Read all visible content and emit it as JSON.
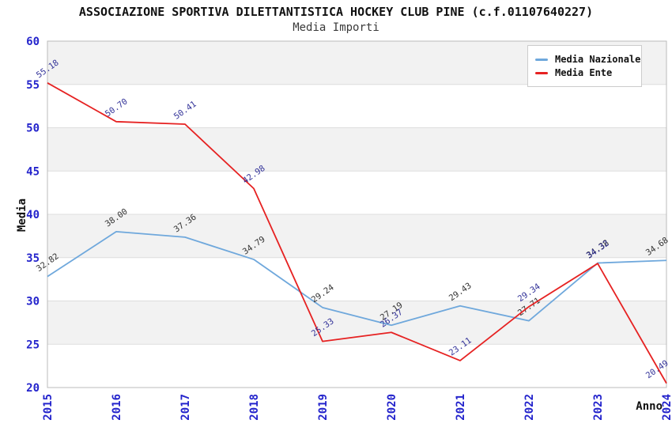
{
  "title": "ASSOCIAZIONE SPORTIVA DILETTANTISTICA HOCKEY CLUB PINE (c.f.01107640227)",
  "subtitle": "Media Importi",
  "chart_data": {
    "type": "line",
    "categories": [
      "2015",
      "2016",
      "2017",
      "2018",
      "2019",
      "2020",
      "2021",
      "2022",
      "2023",
      "2024"
    ],
    "series": [
      {
        "name": "Media Nazionale",
        "color": "#6FA8DC",
        "label_color": "#333333",
        "values": [
          32.82,
          38.0,
          37.36,
          34.79,
          29.24,
          27.19,
          29.43,
          27.71,
          34.38,
          34.68
        ]
      },
      {
        "name": "Media Ente",
        "color": "#E62222",
        "label_color": "#333399",
        "values": [
          55.18,
          50.7,
          50.41,
          42.98,
          25.33,
          26.37,
          23.11,
          29.34,
          34.32,
          20.49
        ]
      }
    ],
    "xlabel": "Anno",
    "ylabel": "Media",
    "ylim": [
      20,
      60
    ],
    "ytick_step": 5,
    "grid": "horizontal gridlines with alternating shaded bands",
    "legend_position": "top-right",
    "label_format": "2 decimals, rotated ~35deg above each point",
    "colors": {
      "axis_tick": "#2424CC",
      "band": "#F2F2F2",
      "gridline": "#DDDDDD",
      "frame": "#BBBBBB"
    }
  }
}
